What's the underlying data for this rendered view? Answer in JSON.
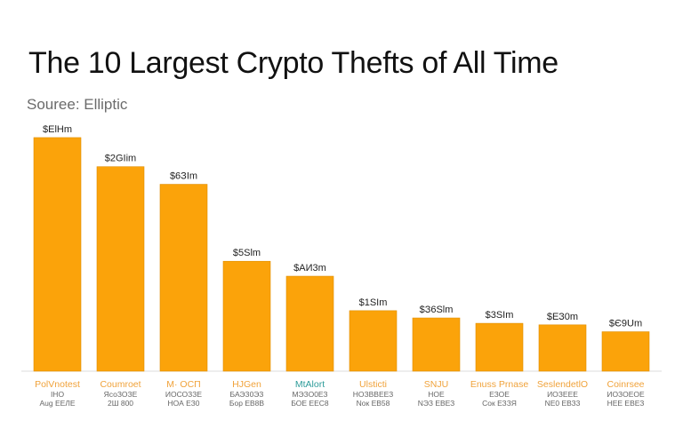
{
  "title": "The 10 Largest Crypto Thefts of All Time",
  "source": "Souree: Elliptic",
  "colors": {
    "bar": "#FBA30A",
    "bar_edge": "#E08E00",
    "label_orange": "#F0A23A",
    "label_teal": "#2E9C9A",
    "axis": "#dddddd"
  },
  "chart_data": {
    "type": "bar",
    "title": "The 10 Largest Crypto Thefts of All Time",
    "subtitle": "Souree: Elliptic",
    "categories": [
      "PolVnotest",
      "Coumroet",
      "M· ОСП",
      "НJGen",
      "MtAlort",
      "Ulsticti",
      "SNJU",
      "Enuss Prnase",
      "SeslendetlO",
      "Coinrsee"
    ],
    "category_sublabels": [
      [
        "ІНО",
        "Aug ЕЕЛЕ"
      ],
      [
        "ЯсоЗОЗЕ",
        "2Ш 800"
      ],
      [
        "ИОСОЗЗЕ",
        "НОА ЕЗ0"
      ],
      [
        "БАЭЗ0ЭЗ",
        "Бор ЕВ8В"
      ],
      [
        "МЭЗО0ЕЗ",
        "БОЕ ЕЕС8"
      ],
      [
        "НОЗВВЕЕЗ",
        "Nок ЕВ58"
      ],
      [
        "НОЕ",
        "NЭЗ ЕВЕЗ"
      ],
      [
        "ЕЗОЕ",
        "Coк ЕЗЗЯ"
      ],
      [
        "ИОЗЕЕЕ",
        "NЕ0 ЕВЗ3"
      ],
      [
        "ИОЗОЕОЕ",
        "НЕЕ ЕВЕЗ"
      ]
    ],
    "category_label_colors": [
      "orange",
      "orange",
      "orange",
      "orange",
      "teal",
      "orange",
      "orange",
      "orange",
      "orange",
      "orange"
    ],
    "value_labels": [
      "$ElHm",
      "$2GIim",
      "$6ЗIm",
      "$5Slm",
      "$AИ3m",
      "$1SIm",
      "$З6Slm",
      "$3SIm",
      "$ЕЗ0m",
      "$Є9Um"
    ],
    "values": [
      610,
      534,
      488,
      287,
      248,
      158,
      139,
      125,
      121,
      103
    ],
    "ylim": [
      0,
      640
    ],
    "xlabel": "",
    "ylabel": "",
    "grid": false,
    "legend": "none"
  }
}
